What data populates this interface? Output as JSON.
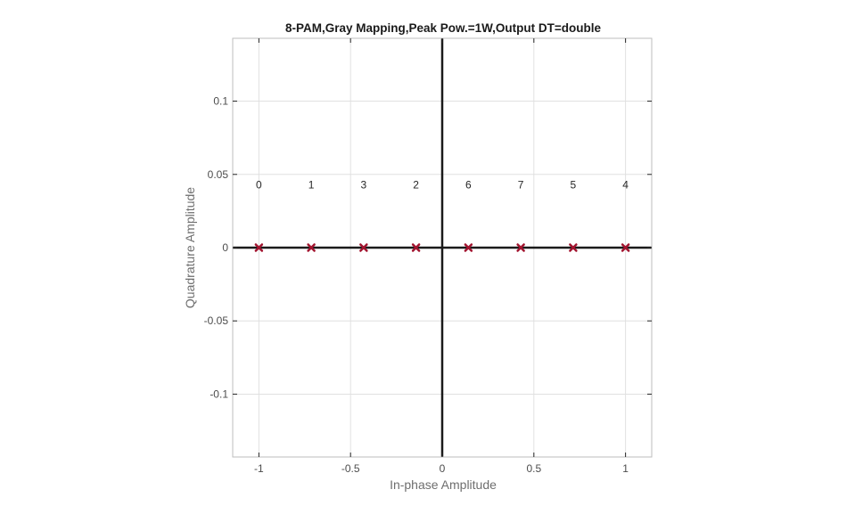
{
  "chart_data": {
    "type": "scatter",
    "title": "8-PAM,Gray Mapping,Peak Pow.=1W,Output DT=double",
    "xlabel": "In-phase Amplitude",
    "ylabel": "Quadrature Amplitude",
    "xlim": [
      -1.1429,
      1.1429
    ],
    "ylim": [
      -0.1429,
      0.1429
    ],
    "xticks": [
      -1,
      -0.5,
      0,
      0.5,
      1
    ],
    "xtick_labels": [
      "-1",
      "-0.5",
      "0",
      "0.5",
      "1"
    ],
    "yticks": [
      0.1,
      0.05,
      0,
      -0.05,
      -0.1
    ],
    "ytick_labels": [
      "0.1",
      "0.05",
      "0",
      "-0.05",
      "-0.1"
    ],
    "grid": true,
    "points": [
      {
        "x": -1.0,
        "y": 0,
        "label": "0"
      },
      {
        "x": -0.7143,
        "y": 0,
        "label": "1"
      },
      {
        "x": -0.4286,
        "y": 0,
        "label": "3"
      },
      {
        "x": -0.1429,
        "y": 0,
        "label": "2"
      },
      {
        "x": 0.1429,
        "y": 0,
        "label": "6"
      },
      {
        "x": 0.4286,
        "y": 0,
        "label": "7"
      },
      {
        "x": 0.7143,
        "y": 0,
        "label": "5"
      },
      {
        "x": 1.0,
        "y": 0,
        "label": "4"
      }
    ],
    "label_y": 0.0429,
    "marker": "x",
    "colors": {
      "marker": "#a2142f",
      "axis_lines": "#1a1a1a",
      "grid": "#e0e0e0",
      "frame": "#bdbdbd"
    }
  }
}
